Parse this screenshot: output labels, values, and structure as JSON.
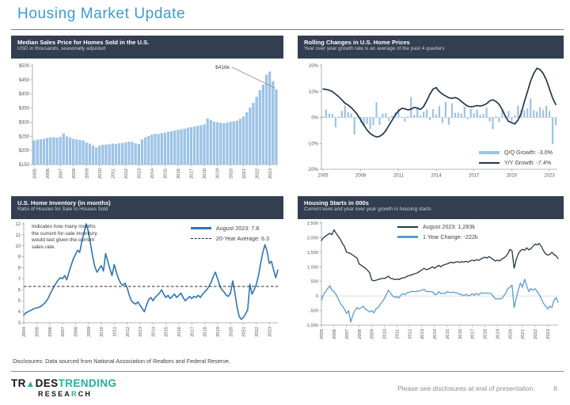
{
  "page": {
    "title": "Housing Market Update",
    "disclosure": "Disclosures: Data sourced from National Association of Realtors and Federal Reserve.",
    "footer_note": "Please see disclosures at end of presentation.",
    "page_number": "6",
    "logo": {
      "t1": "TR",
      "t2": "▲",
      "t3": "DES",
      "t4": "TRENDING",
      "r1": "RESEA",
      "r2": "R",
      "r3": "CH"
    }
  },
  "colors": {
    "title_blue": "#3D9AD1",
    "header_bg": "#333F50",
    "bar_blue": "#9DC3E6",
    "navy_line": "#233749",
    "mid_blue": "#2E75B6",
    "light_blue_line": "#5B9BD5",
    "teal": "#1EB2A0",
    "axis_gray": "#9aa0a6",
    "label_gray": "#595959"
  },
  "panels": [
    {
      "id": "median-price",
      "title": "Median Sales Price for Homes Sold in the U.S.",
      "subtitle": "USD in thousands, seasonally adjusted"
    },
    {
      "id": "rolling-changes",
      "title": "Rolling Changes in U.S. Home Prices",
      "subtitle": "Year over year growth rate is an average of the past 4 quarters",
      "legend": [
        {
          "label": "Q/Q Growth:  -3.0%"
        },
        {
          "label": "Y/Y Growth:  -7.4%"
        }
      ]
    },
    {
      "id": "inventory",
      "title": "U.S. Home Inventory (in months)",
      "subtitle": "Ratio of Houses for Sale to Houses Sold",
      "note": "Indicates how many months the current for-sale inventory would last given the current sales rate.",
      "legend": [
        {
          "label": "August 2023:  7.8"
        },
        {
          "label": "20-Year Average:  6.3"
        }
      ]
    },
    {
      "id": "housing-starts",
      "title": "Housing Starts in 000s",
      "subtitle": "Current level and year over year growth in housing starts",
      "legend": [
        {
          "label": "August 2023:  1,283k"
        },
        {
          "label": "1 Year Change:  -222k"
        }
      ]
    }
  ],
  "chart_data": [
    {
      "id": "median-price",
      "type": "bar",
      "title": "Median Sales Price for Homes Sold in the U.S.",
      "ylabel": "USD in thousands",
      "ylim": [
        150,
        500
      ],
      "ytick_values": [
        500,
        450,
        400,
        350,
        300,
        250,
        200,
        150
      ],
      "ytick_labels": [
        "$500",
        "$450",
        "$400",
        "$350",
        "$300",
        "$250",
        "$200",
        "$150"
      ],
      "x_years": [
        2005,
        2006,
        2007,
        2008,
        2009,
        2010,
        2011,
        2012,
        2013,
        2014,
        2015,
        2016,
        2017,
        2018,
        2019,
        2020,
        2021,
        2022,
        2023
      ],
      "annotation": {
        "text": "$416k"
      },
      "series": [
        {
          "name": "Median Sales Price",
          "type": "bar",
          "color": "#9DC3E6",
          "values": [
            235,
            238,
            239,
            241,
            244,
            246,
            247,
            245,
            248,
            260,
            250,
            246,
            241,
            239,
            237,
            235,
            228,
            224,
            218,
            210,
            217,
            220,
            221,
            222,
            224,
            223,
            225,
            226,
            229,
            231,
            230,
            225,
            223,
            239,
            246,
            251,
            256,
            259,
            258,
            261,
            263,
            266,
            268,
            271,
            273,
            275,
            277,
            280,
            282,
            285,
            287,
            289,
            292,
            313,
            308,
            302,
            300,
            298,
            296,
            299,
            302,
            303,
            305,
            312,
            320,
            335,
            352,
            368,
            390,
            413,
            433,
            468,
            479,
            445,
            416
          ]
        }
      ]
    },
    {
      "id": "rolling-changes",
      "type": "bar",
      "title": "Rolling Changes in U.S. Home Prices",
      "ylim": [
        -20,
        20
      ],
      "ytick_values": [
        20,
        10,
        0,
        -10,
        -20
      ],
      "ytick_labels": [
        "20%",
        "10%",
        "0%",
        "-10%",
        "-20%"
      ],
      "x_years": [
        2005,
        2008,
        2011,
        2014,
        2017,
        2020,
        2023
      ],
      "zero_line": true,
      "series": [
        {
          "name": "Q/Q Growth",
          "current": "-3.0%",
          "type": "bar",
          "color": "#9DC3E6",
          "values": [
            0.5,
            3.0,
            1.5,
            1.3,
            -3.8,
            0.4,
            2.6,
            4.6,
            2.0,
            1.6,
            -6.6,
            0.6,
            -2.0,
            -3.5,
            -2.5,
            -4.4,
            -3.0,
            5.9,
            -2.8,
            1.5,
            1.6,
            -1.4,
            0.7,
            2.0,
            3.4,
            0.3,
            -1.6,
            0.5,
            7.9,
            1.0,
            4.0,
            0.8,
            2.2,
            3.0,
            -1.0,
            3.2,
            1.2,
            4.4,
            -2.2,
            6.0,
            -2.8,
            5.5,
            1.8,
            1.9,
            1.5,
            4.2,
            -0.7,
            3.3,
            1.6,
            3.0,
            1.0,
            1.4,
            3.9,
            -1.5,
            -4.5,
            0.5,
            -1.8,
            2.8,
            0.7,
            2.5,
            -1.5,
            0.8,
            4.5,
            3.0,
            2.7,
            3.5,
            7.3,
            2.8,
            2.3,
            4.0,
            3.0,
            4.5,
            2.5,
            -10.3,
            -3.0
          ]
        },
        {
          "name": "Y/Y Growth",
          "current": "-7.4%",
          "type": "line",
          "color": "#233749",
          "width": 1.7,
          "values": [
            11.0,
            10.8,
            10.5,
            10.0,
            9.0,
            8.0,
            6.8,
            5.5,
            4.8,
            3.8,
            2.5,
            1.0,
            -1.0,
            -3.0,
            -4.8,
            -6.2,
            -7.0,
            -7.5,
            -7.3,
            -6.5,
            -5.0,
            -3.0,
            -1.0,
            1.0,
            2.5,
            3.5,
            3.4,
            2.9,
            3.2,
            3.9,
            3.6,
            3.1,
            4.2,
            6.5,
            9.0,
            11.0,
            11.5,
            10.0,
            9.0,
            8.3,
            7.6,
            7.4,
            7.7,
            7.2,
            6.2,
            5.2,
            4.4,
            4.1,
            4.3,
            4.6,
            4.4,
            4.7,
            5.3,
            6.4,
            6.8,
            6.2,
            5.0,
            3.0,
            0.5,
            -1.5,
            -2.0,
            -2.5,
            -1.0,
            1.5,
            6.0,
            10.0,
            14.0,
            17.0,
            19.0,
            18.5,
            17.0,
            14.5,
            11.0,
            7.5,
            5.0
          ]
        }
      ]
    },
    {
      "id": "inventory",
      "type": "line",
      "title": "U.S. Home Inventory (in months)",
      "ylim": [
        3,
        12
      ],
      "ytick_values": [
        12,
        11,
        10,
        9,
        8,
        7,
        6,
        5,
        4,
        3
      ],
      "ytick_labels": [
        "12",
        "11",
        "10",
        "9",
        "8",
        "7",
        "6",
        "5",
        "4",
        "3"
      ],
      "x_years": [
        2004,
        2005,
        2006,
        2007,
        2008,
        2009,
        2010,
        2011,
        2012,
        2013,
        2014,
        2015,
        2016,
        2017,
        2018,
        2019,
        2020,
        2021,
        2022,
        2023
      ],
      "series": [
        {
          "name": "August 2023",
          "current": 7.8,
          "type": "line",
          "color": "#2E75B6",
          "width": 1.6,
          "values": [
            3.7,
            3.9,
            4.0,
            4.1,
            4.2,
            4.3,
            4.35,
            4.4,
            4.5,
            4.65,
            4.85,
            5.1,
            5.5,
            5.9,
            6.3,
            6.6,
            6.9,
            7.1,
            7.0,
            7.3,
            6.9,
            7.6,
            8.2,
            8.8,
            9.2,
            9.6,
            9.4,
            10.4,
            11.2,
            12.0,
            11.3,
            10.2,
            9.0,
            8.1,
            7.6,
            7.9,
            8.2,
            7.7,
            9.3,
            8.6,
            7.9,
            7.3,
            8.3,
            7.6,
            7.0,
            6.6,
            6.4,
            6.6,
            6.2,
            5.5,
            5.0,
            4.8,
            4.7,
            4.9,
            4.6,
            4.3,
            4.0,
            4.6,
            5.1,
            5.3,
            5.0,
            5.3,
            5.5,
            5.7,
            6.0,
            5.6,
            5.3,
            5.5,
            5.2,
            5.4,
            5.6,
            5.3,
            5.5,
            5.7,
            5.3,
            5.0,
            5.2,
            5.4,
            5.2,
            5.4,
            5.3,
            5.5,
            5.3,
            5.6,
            5.8,
            6.0,
            6.3,
            6.7,
            7.2,
            7.6,
            7.0,
            6.4,
            6.0,
            5.8,
            5.5,
            5.4,
            5.7,
            6.8,
            5.8,
            4.5,
            3.6,
            3.3,
            3.5,
            3.8,
            4.2,
            6.5,
            5.6,
            6.0,
            6.5,
            7.3,
            8.4,
            9.4,
            10.1,
            9.5,
            8.4,
            8.6,
            7.8,
            7.1,
            7.8
          ]
        },
        {
          "name": "20-Year Average",
          "current": 6.3,
          "type": "const",
          "value": 6.3,
          "color": "#2b2b2b"
        }
      ]
    },
    {
      "id": "housing-starts",
      "type": "line",
      "title": "Housing Starts in 000s",
      "ylim": [
        -1000,
        2500
      ],
      "ytick_values": [
        2500,
        2000,
        1500,
        1000,
        500,
        0,
        -500,
        -1000
      ],
      "ytick_labels": [
        "2,500",
        "2,000",
        "1,500",
        "1,000",
        "500",
        "0",
        "-500",
        "-1,000"
      ],
      "x_years": [
        2005,
        2006,
        2007,
        2008,
        2009,
        2010,
        2011,
        2012,
        2013,
        2014,
        2015,
        2016,
        2017,
        2018,
        2019,
        2020,
        2021,
        2022,
        2023
      ],
      "zero_line": true,
      "series": [
        {
          "name": "August 2023",
          "current": "1,283k",
          "type": "line",
          "color": "#233749",
          "width": 1.3,
          "values": [
            1900,
            2000,
            2050,
            2100,
            2150,
            2100,
            2270,
            2150,
            2050,
            1950,
            1800,
            1700,
            1500,
            1480,
            1450,
            1400,
            1350,
            1300,
            1100,
            1050,
            1000,
            950,
            880,
            800,
            550,
            520,
            540,
            560,
            580,
            600,
            600,
            630,
            680,
            600,
            590,
            560,
            580,
            560,
            600,
            620,
            630,
            680,
            700,
            720,
            750,
            770,
            800,
            850,
            900,
            950,
            900,
            920,
            950,
            1000,
            950,
            1000,
            1050,
            1000,
            1050,
            1080,
            1100,
            1130,
            1160,
            1130,
            1160,
            1180,
            1150,
            1180,
            1160,
            1190,
            1160,
            1200,
            1230,
            1200,
            1250,
            1220,
            1260,
            1300,
            1330,
            1300,
            1350,
            1300,
            1250,
            1200,
            1230,
            1200,
            1260,
            1300,
            1350,
            1450,
            1600,
            1550,
            950,
            1250,
            1450,
            1550,
            1600,
            1570,
            1650,
            1580,
            1620,
            1700,
            1780,
            1750,
            1800,
            1700,
            1550,
            1450,
            1400,
            1420,
            1500,
            1420,
            1380,
            1283
          ]
        },
        {
          "name": "1 Year Change",
          "current": "-222k",
          "type": "line",
          "color": "#5B9BD5",
          "width": 1.3,
          "values": [
            -150,
            50,
            150,
            250,
            350,
            200,
            150,
            50,
            -100,
            -250,
            -350,
            -450,
            -600,
            -500,
            -900,
            -650,
            -500,
            -400,
            -450,
            -400,
            -350,
            -450,
            -500,
            -550,
            -500,
            -580,
            -450,
            -400,
            -300,
            -200,
            -100,
            50,
            200,
            100,
            0,
            -50,
            -20,
            -70,
            30,
            80,
            40,
            120,
            120,
            160,
            150,
            150,
            170,
            170,
            200,
            230,
            150,
            150,
            150,
            150,
            50,
            50,
            150,
            80,
            100,
            80,
            150,
            130,
            110,
            130,
            110,
            100,
            50,
            50,
            0,
            60,
            0,
            20,
            80,
            20,
            90,
            30,
            100,
            100,
            100,
            100,
            100,
            80,
            -10,
            -100,
            -100,
            -100,
            -90,
            0,
            100,
            250,
            300,
            370,
            -400,
            -80,
            200,
            450,
            300,
            575,
            350,
            150,
            250,
            200,
            250,
            150,
            50,
            -100,
            -250,
            -350,
            -450,
            -350,
            -400,
            -150,
            -50,
            -222
          ]
        }
      ]
    }
  ]
}
